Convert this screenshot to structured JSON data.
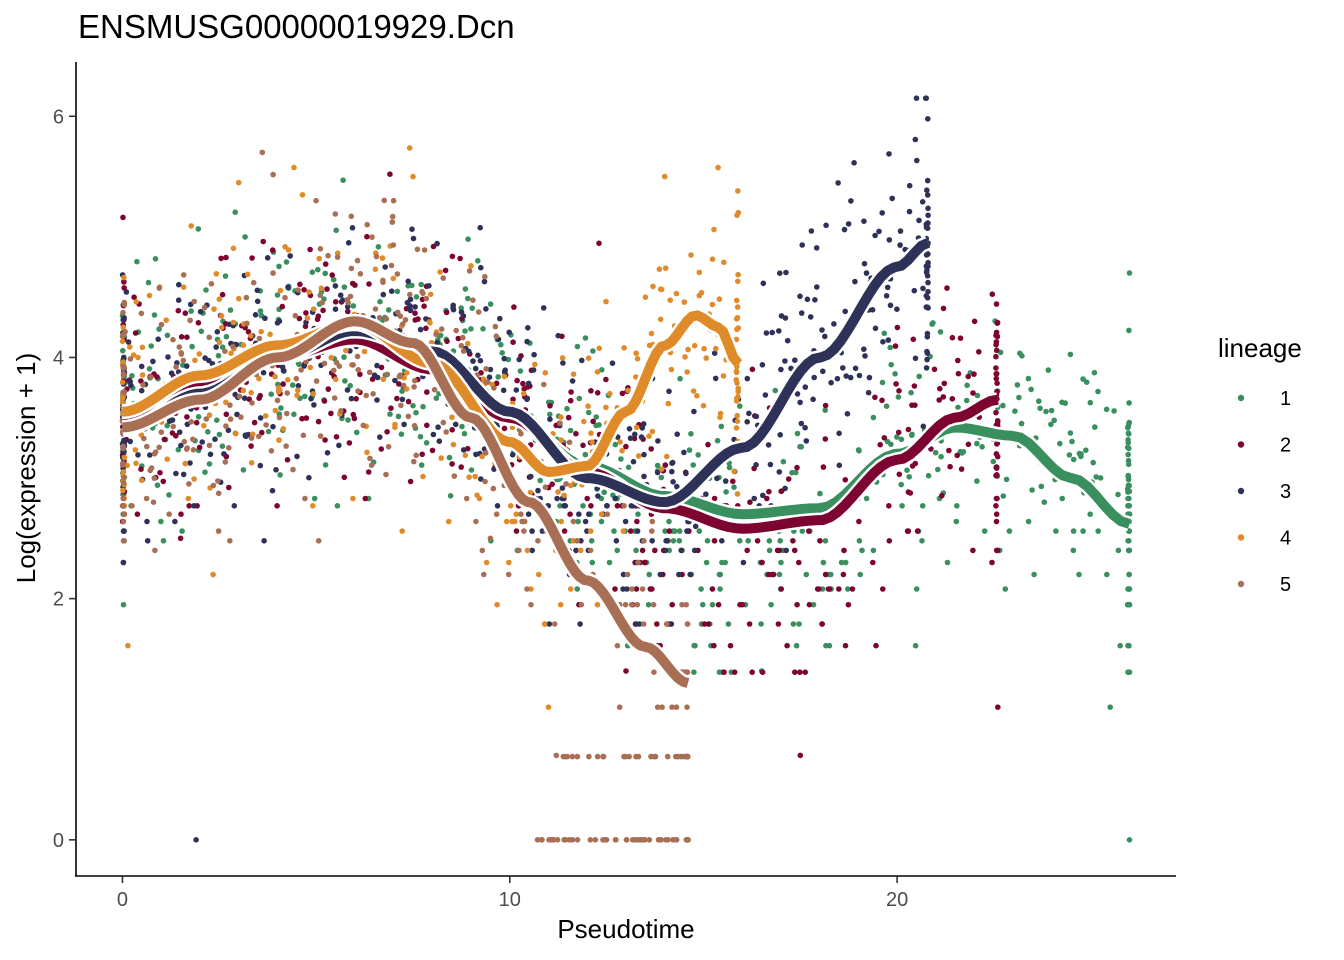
{
  "chart_data": {
    "type": "scatter",
    "title": "ENSMUSG00000019929.Dcn",
    "xlabel": "Pseudotime",
    "ylabel": "Log(expression + 1)",
    "xlim": [
      -1.2,
      27.2
    ],
    "ylim": [
      -0.3,
      6.45
    ],
    "x_ticks": [
      0,
      10,
      20
    ],
    "x_tick_labels": [
      "0",
      "10",
      "20"
    ],
    "y_ticks": [
      0,
      2,
      4,
      6
    ],
    "y_tick_labels": [
      "0",
      "2",
      "4",
      "6"
    ],
    "grid": false,
    "legend": {
      "title": "lineage",
      "position": "right",
      "entries": [
        "1",
        "2",
        "3",
        "4",
        "5"
      ]
    },
    "series": [
      {
        "name": "1",
        "color": "#3a8f5f",
        "x_range": [
          0,
          26
        ],
        "curve": [
          [
            0,
            3.52
          ],
          [
            2,
            3.82
          ],
          [
            4,
            4.05
          ],
          [
            6,
            4.18
          ],
          [
            8,
            3.95
          ],
          [
            10,
            3.5
          ],
          [
            12,
            3.1
          ],
          [
            14,
            2.85
          ],
          [
            16,
            2.7
          ],
          [
            18,
            2.75
          ],
          [
            20,
            3.2
          ],
          [
            21.5,
            3.42
          ],
          [
            23,
            3.35
          ],
          [
            24.5,
            3.0
          ],
          [
            26,
            2.62
          ]
        ],
        "point_samples": [
          [
            0.5,
            3.1
          ],
          [
            3.2,
            4.0
          ],
          [
            7.5,
            3.6
          ],
          [
            11.3,
            3.0
          ],
          [
            13.6,
            2.2
          ],
          [
            16.5,
            1.4
          ],
          [
            19.0,
            2.9
          ],
          [
            21.2,
            3.5
          ],
          [
            23.8,
            2.8
          ],
          [
            25.5,
            1.1
          ],
          [
            26.0,
            4.7
          ],
          [
            26.0,
            0.0
          ]
        ]
      },
      {
        "name": "2",
        "color": "#7d0330",
        "x_range": [
          0,
          22.6
        ],
        "curve": [
          [
            0,
            3.45
          ],
          [
            2,
            3.75
          ],
          [
            4,
            4.0
          ],
          [
            6,
            4.15
          ],
          [
            8,
            3.9
          ],
          [
            10,
            3.5
          ],
          [
            12,
            3.05
          ],
          [
            14,
            2.75
          ],
          [
            16,
            2.58
          ],
          [
            18,
            2.65
          ],
          [
            20,
            3.15
          ],
          [
            21.5,
            3.5
          ],
          [
            22.6,
            3.65
          ]
        ],
        "point_samples": [
          [
            0.3,
            4.5
          ],
          [
            1.5,
            2.5
          ],
          [
            6.0,
            4.6
          ],
          [
            10.5,
            3.4
          ],
          [
            13.0,
            1.4
          ],
          [
            16.2,
            2.8
          ],
          [
            17.5,
            0.7
          ],
          [
            20.4,
            3.1
          ],
          [
            22.0,
            4.3
          ],
          [
            22.6,
            1.1
          ]
        ]
      },
      {
        "name": "3",
        "color": "#2e3259",
        "x_range": [
          0,
          20.8
        ],
        "curve": [
          [
            0,
            3.4
          ],
          [
            2,
            3.7
          ],
          [
            4,
            4.0
          ],
          [
            6,
            4.22
          ],
          [
            8,
            4.05
          ],
          [
            10,
            3.55
          ],
          [
            12,
            3.0
          ],
          [
            14,
            2.8
          ],
          [
            16,
            3.25
          ],
          [
            18,
            4.0
          ],
          [
            20,
            4.75
          ],
          [
            20.8,
            4.95
          ]
        ],
        "point_samples": [
          [
            0.2,
            3.8
          ],
          [
            1.9,
            0.0
          ],
          [
            5.5,
            4.4
          ],
          [
            9.5,
            3.9
          ],
          [
            12.5,
            3.2
          ],
          [
            14.8,
            2.6
          ],
          [
            17.0,
            3.9
          ],
          [
            19.3,
            4.6
          ],
          [
            20.5,
            6.15
          ]
        ]
      },
      {
        "name": "4",
        "color": "#e08b2a",
        "x_range": [
          0,
          15.9
        ],
        "curve": [
          [
            0,
            3.55
          ],
          [
            2,
            3.85
          ],
          [
            4,
            4.1
          ],
          [
            6,
            4.28
          ],
          [
            8,
            3.95
          ],
          [
            10,
            3.3
          ],
          [
            11,
            3.05
          ],
          [
            12,
            3.1
          ],
          [
            13,
            3.55
          ],
          [
            14,
            4.1
          ],
          [
            14.8,
            4.35
          ],
          [
            15.4,
            4.25
          ],
          [
            15.9,
            3.95
          ]
        ],
        "point_samples": [
          [
            0.4,
            4.0
          ],
          [
            3.0,
            5.45
          ],
          [
            7.5,
            5.5
          ],
          [
            11.0,
            1.1
          ],
          [
            13.5,
            4.5
          ],
          [
            14.0,
            5.5
          ],
          [
            15.0,
            3.6
          ],
          [
            15.9,
            5.2
          ]
        ]
      },
      {
        "name": "5",
        "color": "#a86f55",
        "x_range": [
          0,
          14.6
        ],
        "curve": [
          [
            0,
            3.42
          ],
          [
            2,
            3.65
          ],
          [
            4,
            4.0
          ],
          [
            6,
            4.3
          ],
          [
            7.5,
            4.12
          ],
          [
            9,
            3.5
          ],
          [
            10.5,
            2.8
          ],
          [
            12,
            2.15
          ],
          [
            13.5,
            1.6
          ],
          [
            14.6,
            1.3
          ]
        ],
        "point_samples": [
          [
            0.8,
            2.8
          ],
          [
            5.0,
            5.3
          ],
          [
            7.0,
            5.3
          ],
          [
            9.5,
            2.5
          ],
          [
            11.2,
            0.7
          ],
          [
            12.5,
            0.0
          ],
          [
            13.2,
            0.0
          ],
          [
            14.6,
            0.0
          ]
        ]
      }
    ]
  }
}
